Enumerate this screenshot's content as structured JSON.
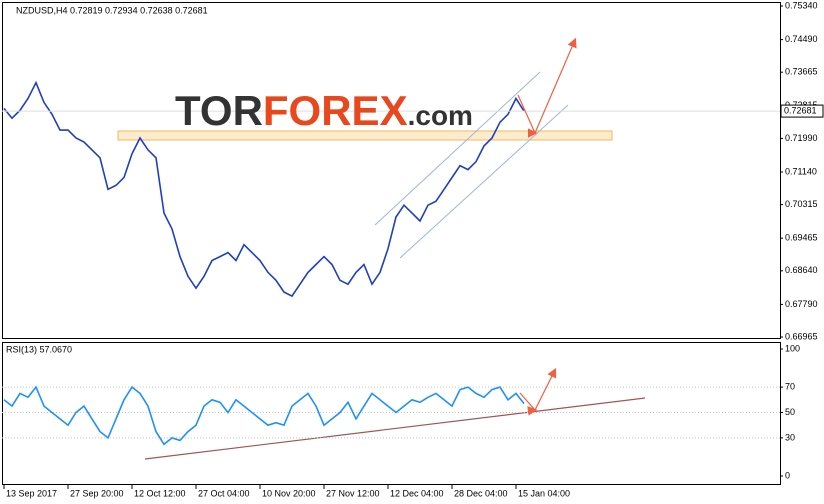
{
  "chart_data": [
    {
      "type": "line",
      "title": "NZDUSD,H4 0.72819 0.72934 0.72638 0.72681",
      "logo": {
        "parts": [
          "TOR",
          "FOREX",
          ".com"
        ]
      },
      "x": [
        0,
        1,
        2,
        3,
        4,
        5,
        6,
        7,
        8,
        9,
        10,
        11,
        12,
        13,
        14,
        15,
        16,
        17,
        18,
        19,
        20,
        21,
        22,
        23,
        24,
        25,
        26,
        27,
        28,
        29,
        30,
        31,
        32,
        33,
        34,
        35,
        36,
        37,
        38,
        39,
        40,
        41,
        42,
        43,
        44,
        45,
        46,
        47,
        48,
        49,
        50,
        51,
        52,
        53,
        54,
        55,
        56,
        57,
        58,
        59,
        60,
        61,
        62,
        63,
        64,
        65
      ],
      "series": [
        {
          "name": "NZDUSD",
          "color": "#1f3fbf",
          "values": [
            0.7275,
            0.725,
            0.727,
            0.73,
            0.734,
            0.729,
            0.726,
            0.722,
            0.722,
            0.72,
            0.719,
            0.717,
            0.715,
            0.707,
            0.708,
            0.71,
            0.716,
            0.72,
            0.717,
            0.715,
            0.701,
            0.697,
            0.69,
            0.685,
            0.682,
            0.685,
            0.689,
            0.69,
            0.691,
            0.689,
            0.693,
            0.691,
            0.689,
            0.686,
            0.684,
            0.681,
            0.68,
            0.683,
            0.686,
            0.688,
            0.69,
            0.688,
            0.684,
            0.683,
            0.686,
            0.688,
            0.683,
            0.686,
            0.692,
            0.7,
            0.703,
            0.701,
            0.699,
            0.703,
            0.704,
            0.707,
            0.71,
            0.713,
            0.712,
            0.714,
            0.718,
            0.72,
            0.724,
            0.726,
            0.73,
            0.7268
          ]
        }
      ],
      "price_marker": {
        "value": 0.72681,
        "label": "0.72681"
      },
      "xlim": [
        -0.25,
        97
      ],
      "ylim": [
        0.66965,
        0.7534
      ],
      "yticks": [
        {
          "value": 0.7534,
          "label": "0.75340"
        },
        {
          "value": 0.7449,
          "label": "0.74490"
        },
        0.73665,
        0.72815,
        {
          "value": 0.7199,
          "label": "0.71990"
        },
        {
          "value": 0.7114,
          "label": "0.71140"
        },
        0.70315,
        0.69465,
        {
          "value": 0.6864,
          "label": "0.68640"
        },
        {
          "value": 0.6779,
          "label": "0.67790"
        },
        0.66965
      ]
    },
    {
      "type": "line",
      "title": "RSI(13) 57.0670",
      "x": [
        0,
        1,
        2,
        3,
        4,
        5,
        6,
        7,
        8,
        9,
        10,
        11,
        12,
        13,
        14,
        15,
        16,
        17,
        18,
        19,
        20,
        21,
        22,
        23,
        24,
        25,
        26,
        27,
        28,
        29,
        30,
        31,
        32,
        33,
        34,
        35,
        36,
        37,
        38,
        39,
        40,
        41,
        42,
        43,
        44,
        45,
        46,
        47,
        48,
        49,
        50,
        51,
        52,
        53,
        54,
        55,
        56,
        57,
        58,
        59,
        60,
        61,
        62,
        63,
        64,
        65
      ],
      "series": [
        {
          "name": "RSI(13)",
          "color": "#1e90ff",
          "values": [
            60,
            55,
            65,
            62,
            70,
            55,
            50,
            45,
            40,
            50,
            55,
            45,
            35,
            30,
            45,
            60,
            70,
            65,
            55,
            35,
            25,
            30,
            28,
            35,
            40,
            55,
            60,
            58,
            50,
            60,
            55,
            50,
            45,
            40,
            42,
            40,
            55,
            60,
            65,
            55,
            40,
            45,
            50,
            58,
            45,
            55,
            65,
            60,
            55,
            50,
            55,
            60,
            58,
            62,
            65,
            60,
            55,
            68,
            70,
            65,
            62,
            68,
            70,
            60,
            65,
            57
          ]
        }
      ],
      "xlim": [
        -0.25,
        97
      ],
      "ylim": [
        0,
        100
      ],
      "yticks": [
        100,
        70,
        50,
        30,
        0
      ],
      "xticks": [
        {
          "value": 0,
          "label": "13 Sep 2017"
        },
        {
          "value": 8,
          "label": "27 Sep 20:00"
        },
        {
          "value": 16,
          "label": "12 Oct 12:00"
        },
        {
          "value": 24,
          "label": "27 Oct 04:00"
        },
        {
          "value": 32,
          "label": "10 Nov 20:00"
        },
        {
          "value": 40,
          "label": "27 Nov 12:00"
        },
        {
          "value": 48,
          "label": "12 Dec 04:00"
        },
        {
          "value": 56,
          "label": "28 Dec 04:00"
        },
        {
          "value": 64,
          "label": "15 Jan 04:00"
        }
      ]
    }
  ]
}
